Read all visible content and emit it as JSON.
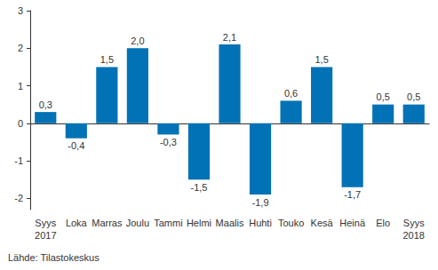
{
  "chart_data": {
    "type": "bar",
    "categories": [
      "Syys\n2017",
      "Loka",
      "Marras",
      "Joulu",
      "Tammi",
      "Helmi",
      "Maalis",
      "Huhti",
      "Touko",
      "Kesä",
      "Heinä",
      "Elo",
      "Syys\n2018"
    ],
    "values": [
      0.3,
      -0.4,
      1.5,
      2.0,
      -0.3,
      -1.5,
      2.1,
      -1.9,
      0.6,
      1.5,
      -1.7,
      0.5,
      0.5
    ],
    "value_labels": [
      "0,3",
      "-0,4",
      "1,5",
      "2,0",
      "-0,3",
      "-1,5",
      "2,1",
      "-1,9",
      "0,6",
      "1,5",
      "-1,7",
      "0,5",
      "0,5"
    ],
    "data_labels": true,
    "color": "#0072b5",
    "ylim": [
      -2.3,
      3
    ],
    "yticks": [
      -2,
      -1,
      0,
      1,
      2,
      3
    ],
    "grid": false,
    "source": "Lähde: Tilastokeskus"
  }
}
